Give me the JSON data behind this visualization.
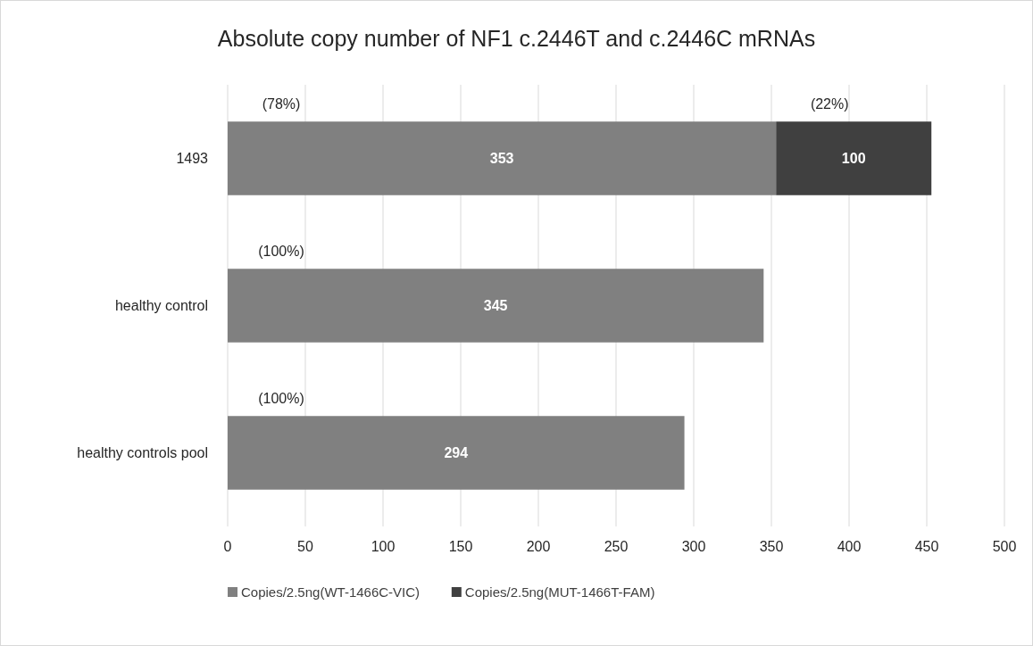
{
  "chart_data": {
    "type": "bar",
    "orientation": "horizontal",
    "stacked": true,
    "title": "Absolute copy number of NF1 c.2446T and c.2446C mRNAs",
    "categories": [
      "1493",
      "healthy control",
      "healthy controls pool"
    ],
    "series": [
      {
        "name": "Copies/2.5ng(WT-1466C-VIC)",
        "color": "#808080",
        "values": [
          353,
          345,
          294
        ]
      },
      {
        "name": "Copies/2.5ng(MUT-1466T-FAM)",
        "color": "#404040",
        "values": [
          100,
          null,
          null
        ]
      }
    ],
    "xlim": [
      0,
      500
    ],
    "xticks": [
      0,
      50,
      100,
      150,
      200,
      250,
      300,
      350,
      400,
      450,
      500
    ],
    "grid": "x",
    "legend": "bottom",
    "data_labels": true,
    "annotations": [
      "(78%)",
      "(22%)",
      "(100%)",
      "(100%)"
    ]
  }
}
